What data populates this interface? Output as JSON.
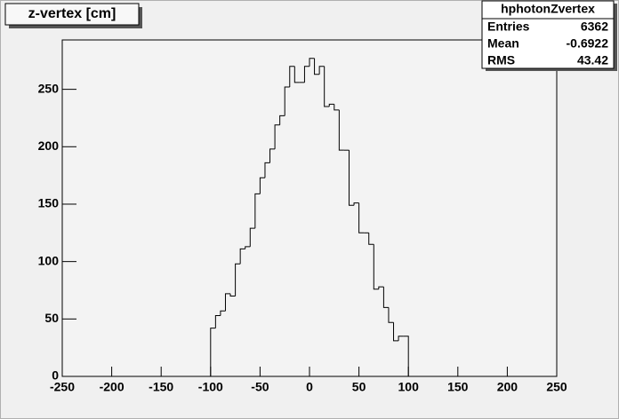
{
  "chart_data": {
    "type": "histogram",
    "title": "z-vertex [cm]",
    "bins": [
      -100,
      -95,
      -90,
      -85,
      -80,
      -75,
      -70,
      -65,
      -60,
      -55,
      -50,
      -45,
      -40,
      -35,
      -30,
      -25,
      -20,
      -15,
      -10,
      -5,
      0,
      5,
      10,
      15,
      20,
      25,
      30,
      35,
      40,
      45,
      50,
      55,
      60,
      65,
      70,
      75,
      80,
      85,
      90,
      95,
      100
    ],
    "counts": [
      42,
      53,
      57,
      72,
      70,
      98,
      111,
      113,
      129,
      159,
      173,
      186,
      198,
      219,
      227,
      252,
      270,
      256,
      256,
      270,
      277,
      263,
      270,
      235,
      237,
      232,
      197,
      197,
      149,
      151,
      125,
      125,
      115,
      76,
      78,
      60,
      47,
      31,
      35,
      35
    ],
    "color": "#000000",
    "xlim": [
      -250,
      250
    ],
    "xticks": [
      -250,
      -200,
      -150,
      -100,
      -50,
      0,
      50,
      100,
      150,
      200,
      250
    ],
    "ylim": [
      0,
      293
    ],
    "yticks": [
      0,
      50,
      100,
      150,
      200,
      250
    ],
    "stats": {
      "title": "hphotonZvertex",
      "rows": [
        {
          "label": "Entries",
          "value": 6362
        },
        {
          "label": "Mean",
          "value": -0.6922
        },
        {
          "label": "RMS",
          "value": 43.42
        }
      ]
    }
  }
}
